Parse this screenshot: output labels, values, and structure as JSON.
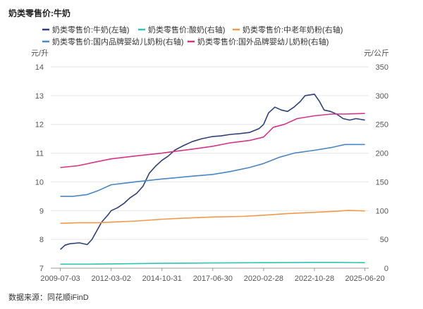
{
  "chart_data": {
    "type": "line",
    "title": "奶类零售价:牛奶",
    "source": "数据来源：同花顺iFinD",
    "left_unit": "元/升",
    "right_unit": "元/公斤",
    "left_axis": {
      "min": 7,
      "max": 14,
      "ticks": [
        "7",
        "8",
        "9",
        "10",
        "11",
        "12",
        "13",
        "14"
      ]
    },
    "right_axis": {
      "min": 0,
      "max": 350,
      "ticks": [
        "0",
        "50",
        "100",
        "150",
        "200",
        "250",
        "300",
        "350"
      ]
    },
    "x_range": [
      "2009-01-01",
      "2025-09-01"
    ],
    "x_ticks": [
      "2009-07-03",
      "2012-03-02",
      "2014-10-31",
      "2017-06-30",
      "2020-02-28",
      "2022-10-28",
      "2025-06-20"
    ],
    "grid": true,
    "legend_position": "top",
    "series": [
      {
        "name": "奶类零售价:牛奶(左轴)",
        "axis": "left",
        "color": "#2e3f7e",
        "points": [
          [
            "2009-07-03",
            7.65
          ],
          [
            "2009-10-01",
            7.8
          ],
          [
            "2010-01-01",
            7.85
          ],
          [
            "2010-07-01",
            7.88
          ],
          [
            "2010-12-01",
            7.82
          ],
          [
            "2011-03-01",
            8.0
          ],
          [
            "2011-06-01",
            8.3
          ],
          [
            "2011-09-01",
            8.6
          ],
          [
            "2012-01-01",
            8.85
          ],
          [
            "2012-03-02",
            9.0
          ],
          [
            "2012-07-01",
            9.1
          ],
          [
            "2012-11-01",
            9.25
          ],
          [
            "2013-03-01",
            9.45
          ],
          [
            "2013-07-01",
            9.6
          ],
          [
            "2013-11-01",
            9.85
          ],
          [
            "2014-03-01",
            10.3
          ],
          [
            "2014-07-01",
            10.55
          ],
          [
            "2014-10-31",
            10.75
          ],
          [
            "2015-03-01",
            10.9
          ],
          [
            "2015-07-01",
            11.1
          ],
          [
            "2015-12-01",
            11.25
          ],
          [
            "2016-06-01",
            11.4
          ],
          [
            "2016-12-01",
            11.5
          ],
          [
            "2017-06-30",
            11.58
          ],
          [
            "2017-12-01",
            11.6
          ],
          [
            "2018-06-01",
            11.65
          ],
          [
            "2018-12-01",
            11.68
          ],
          [
            "2019-06-01",
            11.72
          ],
          [
            "2019-12-01",
            11.85
          ],
          [
            "2020-02-28",
            12.0
          ],
          [
            "2020-06-01",
            12.4
          ],
          [
            "2020-10-01",
            12.6
          ],
          [
            "2021-02-01",
            12.5
          ],
          [
            "2021-06-01",
            12.45
          ],
          [
            "2021-10-01",
            12.6
          ],
          [
            "2022-02-01",
            12.8
          ],
          [
            "2022-05-01",
            13.0
          ],
          [
            "2022-10-28",
            13.05
          ],
          [
            "2023-02-01",
            12.8
          ],
          [
            "2023-05-01",
            12.5
          ],
          [
            "2023-09-01",
            12.45
          ],
          [
            "2024-01-01",
            12.35
          ],
          [
            "2024-05-01",
            12.2
          ],
          [
            "2024-09-01",
            12.15
          ],
          [
            "2025-01-01",
            12.2
          ],
          [
            "2025-06-20",
            12.15
          ]
        ]
      },
      {
        "name": "奶类零售价:酸奶(右轴)",
        "axis": "right",
        "color": "#2ec4b6",
        "points": [
          [
            "2009-07-03",
            7
          ],
          [
            "2011-01-01",
            7
          ],
          [
            "2012-03-02",
            7.5
          ],
          [
            "2014-10-31",
            8.5
          ],
          [
            "2017-06-30",
            9
          ],
          [
            "2020-02-28",
            9.5
          ],
          [
            "2022-10-28",
            10
          ],
          [
            "2024-01-01",
            10
          ],
          [
            "2025-06-20",
            9.5
          ]
        ]
      },
      {
        "name": "奶类零售价:中老年奶粉(右轴)",
        "axis": "right",
        "color": "#f2994a",
        "points": [
          [
            "2009-07-03",
            78
          ],
          [
            "2010-07-01",
            79
          ],
          [
            "2011-07-01",
            79
          ],
          [
            "2012-03-02",
            80
          ],
          [
            "2013-07-01",
            82
          ],
          [
            "2014-10-31",
            85
          ],
          [
            "2016-01-01",
            87
          ],
          [
            "2017-06-30",
            89
          ],
          [
            "2019-01-01",
            90
          ],
          [
            "2020-02-28",
            92
          ],
          [
            "2021-06-01",
            95
          ],
          [
            "2022-10-28",
            97
          ],
          [
            "2024-01-01",
            99
          ],
          [
            "2024-08-01",
            100.5
          ],
          [
            "2025-06-20",
            99.5
          ]
        ]
      },
      {
        "name": "奶类零售价:国内品牌婴幼儿奶粉(右轴)",
        "axis": "right",
        "color": "#4a86c5",
        "points": [
          [
            "2009-07-03",
            125
          ],
          [
            "2010-03-01",
            125
          ],
          [
            "2010-12-01",
            128
          ],
          [
            "2011-07-01",
            135
          ],
          [
            "2012-03-02",
            145
          ],
          [
            "2012-12-01",
            148
          ],
          [
            "2013-06-01",
            150
          ],
          [
            "2014-10-31",
            155
          ],
          [
            "2015-07-01",
            157
          ],
          [
            "2016-06-01",
            160
          ],
          [
            "2017-06-30",
            163
          ],
          [
            "2018-06-01",
            168
          ],
          [
            "2019-06-01",
            175
          ],
          [
            "2020-02-28",
            182
          ],
          [
            "2021-01-01",
            193
          ],
          [
            "2021-10-01",
            200
          ],
          [
            "2022-10-28",
            205
          ],
          [
            "2023-10-01",
            210
          ],
          [
            "2024-06-01",
            215
          ],
          [
            "2025-06-20",
            215
          ]
        ]
      },
      {
        "name": "奶类零售价:国外品牌婴幼儿奶粉(右轴)",
        "axis": "right",
        "color": "#d6338a",
        "points": [
          [
            "2009-07-03",
            175
          ],
          [
            "2010-06-01",
            178
          ],
          [
            "2011-06-01",
            185
          ],
          [
            "2012-03-02",
            190
          ],
          [
            "2013-06-01",
            195
          ],
          [
            "2014-10-31",
            200
          ],
          [
            "2015-07-01",
            203
          ],
          [
            "2016-06-01",
            207
          ],
          [
            "2017-06-30",
            212
          ],
          [
            "2018-06-01",
            218
          ],
          [
            "2019-06-01",
            222
          ],
          [
            "2020-02-28",
            228
          ],
          [
            "2020-09-01",
            245
          ],
          [
            "2021-04-01",
            250
          ],
          [
            "2021-12-01",
            260
          ],
          [
            "2022-10-28",
            265
          ],
          [
            "2023-10-01",
            268
          ],
          [
            "2024-06-01",
            268
          ],
          [
            "2025-06-20",
            269
          ]
        ]
      }
    ]
  }
}
